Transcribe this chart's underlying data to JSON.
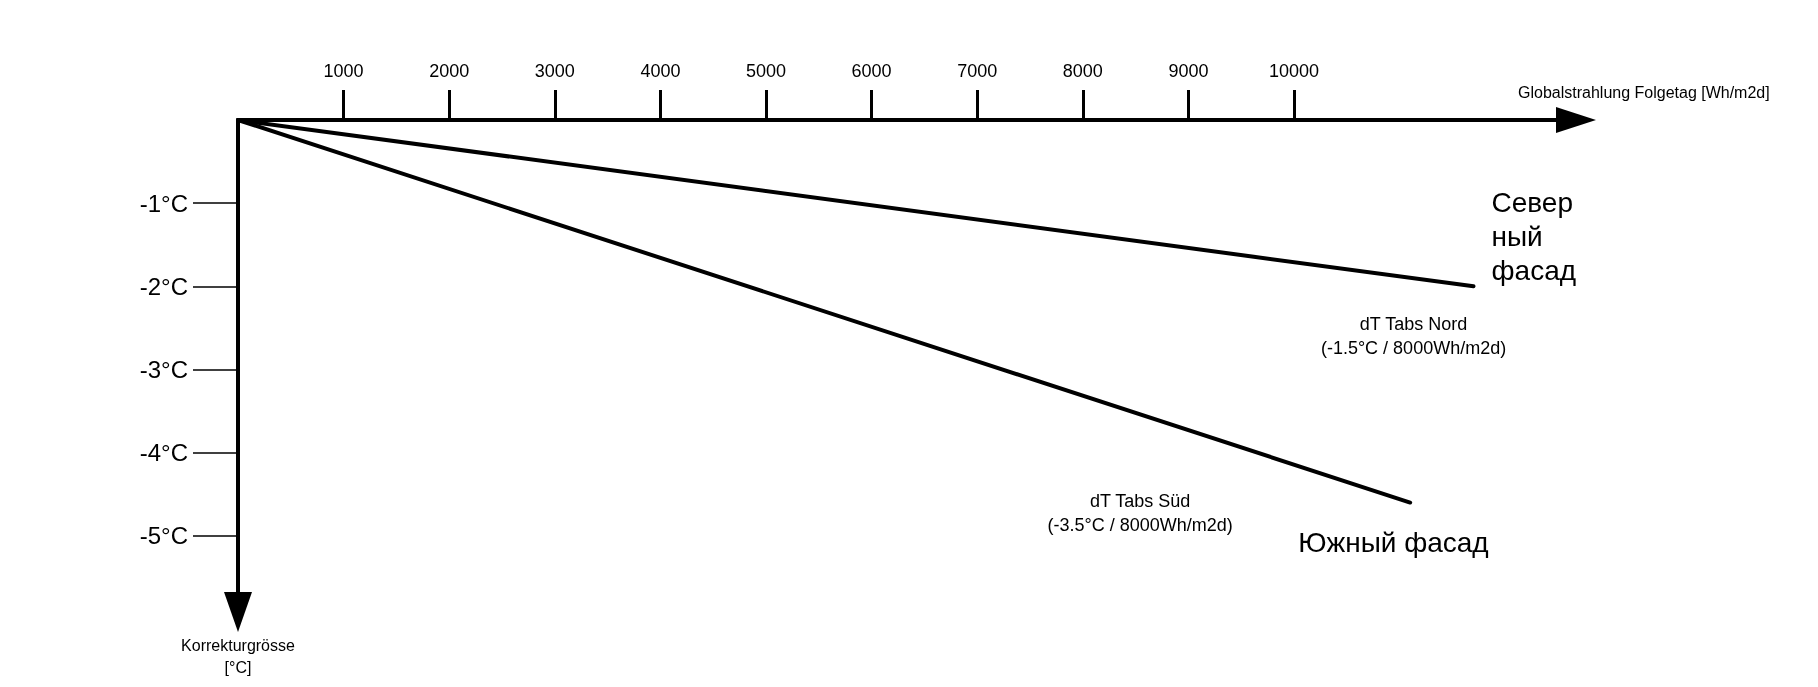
{
  "chart_data": {
    "type": "line",
    "xlabel": "Globalstrahlung Folgetag [Wh/m2d]",
    "ylabel": "Korrekturgrösse [°C]",
    "xlim": [
      0,
      12500
    ],
    "xticks": [
      1000,
      2000,
      3000,
      4000,
      5000,
      6000,
      7000,
      8000,
      9000,
      10000
    ],
    "ylim": [
      -5.7,
      0
    ],
    "yticks": [
      {
        "value": -1,
        "label": "-1°C"
      },
      {
        "value": -2,
        "label": "-2°C"
      },
      {
        "value": -3,
        "label": "-3°C"
      },
      {
        "value": -4,
        "label": "-4°C"
      },
      {
        "value": -5,
        "label": "-5°C"
      }
    ],
    "grid": false,
    "legend": false,
    "marker": "none",
    "line_style": "solid",
    "series": [
      {
        "name": "Северный фасад",
        "color": "#000000",
        "x": [
          0,
          11700
        ],
        "values": [
          0,
          -2
        ]
      },
      {
        "name": "Южный фасад",
        "color": "#000000",
        "x": [
          0,
          11100
        ],
        "values": [
          0,
          -4.6
        ]
      }
    ],
    "annotations": [
      "dT Tabs Nord\n(-1.5°C / 8000Wh/m2d)",
      "dT Tabs Süd\n(-3.5°C / 8000Wh/m2d)"
    ]
  }
}
